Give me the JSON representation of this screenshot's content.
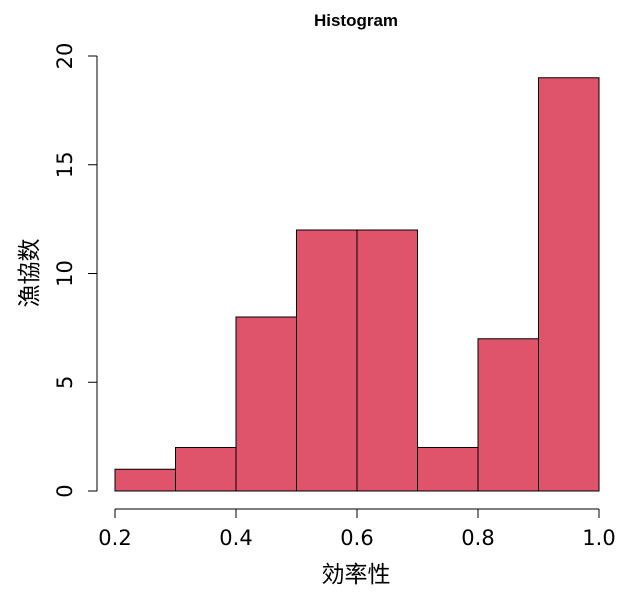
{
  "chart_data": {
    "type": "bar",
    "title": "Histogram",
    "xlabel": "効率性",
    "ylabel": "漁協数",
    "bins": [
      {
        "start": 0.2,
        "end": 0.3,
        "count": 1
      },
      {
        "start": 0.3,
        "end": 0.4,
        "count": 2
      },
      {
        "start": 0.4,
        "end": 0.5,
        "count": 8
      },
      {
        "start": 0.5,
        "end": 0.6,
        "count": 12
      },
      {
        "start": 0.6,
        "end": 0.7,
        "count": 12
      },
      {
        "start": 0.7,
        "end": 0.8,
        "count": 2
      },
      {
        "start": 0.8,
        "end": 0.9,
        "count": 7
      },
      {
        "start": 0.9,
        "end": 1.0,
        "count": 19
      }
    ],
    "xlim": [
      0.2,
      1.0
    ],
    "ylim": [
      0,
      20
    ],
    "x_ticks": [
      "0.2",
      "0.4",
      "0.6",
      "0.8",
      "1.0"
    ],
    "y_ticks": [
      "0",
      "5",
      "10",
      "15",
      "20"
    ],
    "bar_color": "#DF536B",
    "grid": false,
    "legend": "none"
  }
}
